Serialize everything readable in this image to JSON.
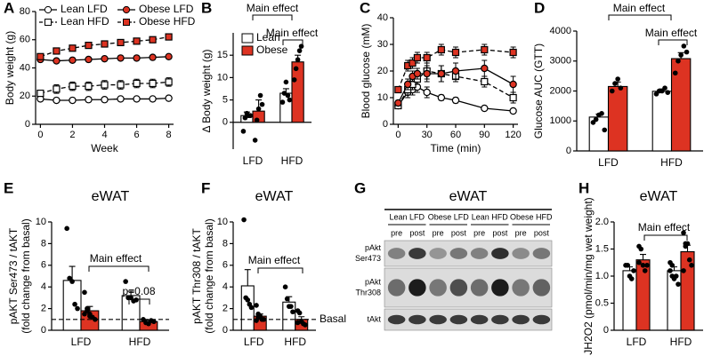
{
  "chart_data": [
    {
      "type": "line",
      "panel": "A",
      "ylabel": "Body weight (g)",
      "xlabel": "Week",
      "x": [
        0,
        1,
        2,
        3,
        4,
        5,
        6,
        7,
        8
      ],
      "xlim": [
        -0.3,
        8.3
      ],
      "xticks": [
        0,
        2,
        4,
        6,
        8
      ],
      "ylim": [
        0,
        80
      ],
      "yticks": [
        0,
        20,
        40,
        60,
        80
      ],
      "legend": true,
      "series": [
        {
          "name": "Lean LFD",
          "color": "#ffffff",
          "marker": "circle",
          "dashed": false,
          "values": [
            18,
            17,
            17,
            17.5,
            17.5,
            18,
            18,
            18,
            18.5
          ],
          "errors": [
            1,
            1,
            1,
            1,
            1,
            1,
            1,
            1,
            1
          ]
        },
        {
          "name": "Lean HFD",
          "color": "#ffffff",
          "marker": "square",
          "dashed": true,
          "values": [
            22,
            25,
            27,
            27,
            28,
            28,
            29,
            29,
            30
          ],
          "errors": [
            2,
            3,
            3,
            3,
            3,
            3,
            3,
            3,
            3
          ]
        },
        {
          "name": "Obese LFD",
          "color": "#dd3322",
          "marker": "circle",
          "dashed": false,
          "values": [
            46,
            45,
            45.5,
            46,
            46.5,
            47,
            47,
            47.5,
            48
          ],
          "errors": [
            1,
            1,
            1,
            1,
            1,
            1,
            1,
            1,
            1
          ]
        },
        {
          "name": "Obese HFD",
          "color": "#dd3322",
          "marker": "square",
          "dashed": true,
          "values": [
            48,
            52,
            54,
            56,
            57,
            58,
            59,
            60,
            62
          ],
          "errors": [
            1,
            1,
            1,
            1,
            1,
            1,
            1,
            1,
            1
          ]
        }
      ]
    },
    {
      "type": "bar",
      "panel": "B",
      "ylabel": "Δ Body weight (g)",
      "categories": [
        "LFD",
        "HFD"
      ],
      "ylim": [
        -6,
        20
      ],
      "yticks": [
        0,
        5,
        10,
        15
      ],
      "legend": true,
      "annotations": [
        "Main effect",
        "Main effect"
      ],
      "series": [
        {
          "name": "Lean",
          "color": "#ffffff",
          "values": [
            1.5,
            6.5
          ],
          "errors": [
            0.8,
            1
          ],
          "points": [
            [
              -2,
              1,
              2,
              1.5,
              1.5
            ],
            [
              4.5,
              6.5,
              9,
              6,
              5
            ]
          ]
        },
        {
          "name": "Obese",
          "color": "#dd3322",
          "values": [
            2.5,
            13.5
          ],
          "errors": [
            2.5,
            1.5
          ],
          "points": [
            [
              -4,
              0.5,
              3,
              6,
              4
            ],
            [
              9.5,
              12,
              14,
              16,
              17
            ]
          ]
        }
      ]
    },
    {
      "type": "line",
      "panel": "C",
      "ylabel": "Blood glucose (mM)",
      "xlabel": "Time (min)",
      "x": [
        0,
        10,
        15,
        20,
        30,
        45,
        60,
        90,
        120
      ],
      "xlim": [
        -5,
        125
      ],
      "xticks": [
        0,
        30,
        60,
        90,
        120
      ],
      "ylim": [
        0,
        40
      ],
      "yticks": [
        0,
        10,
        20,
        30,
        40
      ],
      "series": [
        {
          "color": "#ffffff",
          "marker": "circle",
          "dashed": false,
          "values": [
            7,
            12,
            13,
            14,
            12,
            10,
            9,
            6,
            5
          ],
          "errors": [
            1,
            2,
            2,
            2,
            2,
            1,
            1,
            0.5,
            0.5
          ]
        },
        {
          "color": "#ffffff",
          "marker": "square",
          "dashed": true,
          "values": [
            7,
            13,
            15,
            17,
            20,
            19,
            18,
            16,
            10
          ],
          "errors": [
            1,
            2,
            2,
            2,
            3,
            3,
            2,
            2,
            2
          ]
        },
        {
          "color": "#dd3322",
          "marker": "circle",
          "dashed": false,
          "values": [
            8,
            15,
            18,
            19,
            19,
            19,
            20,
            21,
            15
          ],
          "errors": [
            1,
            2,
            2,
            2,
            3,
            3,
            3,
            3,
            3
          ]
        },
        {
          "color": "#dd3322",
          "marker": "square",
          "dashed": true,
          "values": [
            13,
            22,
            23,
            25,
            25,
            28,
            27,
            28,
            27
          ],
          "errors": [
            1,
            2,
            2,
            2,
            2,
            2,
            2,
            2,
            2
          ]
        }
      ]
    },
    {
      "type": "bar",
      "panel": "D",
      "ylabel": "Glucose AUC (GTT)",
      "categories": [
        "LFD",
        "HFD"
      ],
      "ylim": [
        0,
        4000
      ],
      "yticks": [
        0,
        1000,
        2000,
        3000,
        4000
      ],
      "annotations": [
        "Main effect",
        "Main effect"
      ],
      "series": [
        {
          "color": "#ffffff",
          "values": [
            1130,
            1990
          ],
          "errors": [
            100,
            80
          ],
          "points": [
            [
              950,
              1050,
              1200,
              1250,
              700
            ],
            [
              1900,
              2000,
              2000,
              2100,
              1950
            ]
          ]
        },
        {
          "color": "#dd3322",
          "values": [
            2150,
            3080
          ],
          "errors": [
            150,
            200
          ],
          "points": [
            [
              2000,
              2250,
              2400,
              2100
            ],
            [
              2600,
              3000,
              3200,
              3500,
              3300
            ]
          ]
        }
      ]
    },
    {
      "type": "bar",
      "panel": "E",
      "title": "eWAT",
      "ylabel": [
        "pAKT Ser473 / tAKT",
        "(fold change from basal)"
      ],
      "categories": [
        "LFD",
        "HFD"
      ],
      "ylim": [
        0,
        10
      ],
      "yticks": [
        0,
        2,
        4,
        6,
        8,
        10
      ],
      "hline": 1,
      "annotations": [
        "Main effect",
        "p=0.08"
      ],
      "series": [
        {
          "color": "#ffffff",
          "values": [
            4.6,
            3.2
          ],
          "errors": [
            1.3,
            0.4
          ],
          "points": [
            [
              9.4,
              4.8,
              4.5,
              2.4,
              2.0
            ],
            [
              4.5,
              3,
              3,
              2.7,
              2.8
            ]
          ]
        },
        {
          "color": "#dd3322",
          "values": [
            1.8,
            0.8
          ],
          "errors": [
            0.4,
            0.15
          ],
          "points": [
            [
              3.5,
              2,
              1.5,
              1.2,
              1,
              1.5,
              1.8,
              1.3
            ],
            [
              1,
              0.7,
              0.6,
              0.9,
              0.8
            ]
          ]
        }
      ]
    },
    {
      "type": "bar",
      "panel": "F",
      "title": "eWAT",
      "ylabel": [
        "pAKT Thr308 / tAKT",
        "(fold change from basal)"
      ],
      "categories": [
        "LFD",
        "HFD"
      ],
      "ylim": [
        0,
        10
      ],
      "yticks": [
        0,
        2,
        4,
        6,
        8,
        10
      ],
      "hline": 1,
      "hline_label": "Basal",
      "annotations": [
        "Main effect"
      ],
      "series": [
        {
          "color": "#ffffff",
          "values": [
            4.1,
            2.6
          ],
          "errors": [
            1.5,
            0.5
          ],
          "points": [
            [
              10.2,
              3,
              2.8,
              2.4,
              2.1
            ],
            [
              4,
              2.9,
              2.2,
              2.2,
              1.7
            ]
          ]
        },
        {
          "color": "#dd3322",
          "values": [
            1.3,
            1.0
          ],
          "errors": [
            0.2,
            0.25
          ],
          "points": [
            [
              2.3,
              1.5,
              1.2,
              1,
              1,
              0.9,
              1.2,
              1.3
            ],
            [
              1.8,
              1.6,
              0.8,
              0.6,
              0.5,
              0.7
            ]
          ]
        }
      ]
    },
    {
      "type": "bar",
      "panel": "H",
      "title": "eWAT",
      "ylabel": "JH2O2 (pmol/min/mg wet weight)",
      "categories": [
        "LFD",
        "HFD"
      ],
      "ylim": [
        0,
        2
      ],
      "yticks": [
        0,
        0.5,
        {
          "value": 1,
          "label": "1.0"
        },
        1.5,
        {
          "value": 2,
          "label": "2.0"
        }
      ],
      "annotations": [
        "Main effect"
      ],
      "series": [
        {
          "color": "#ffffff",
          "values": [
            1.1,
            1.1
          ],
          "errors": [
            0.07,
            0.07
          ],
          "points": [
            [
              1.2,
              1.2,
              1.0,
              0.95,
              1.1
            ],
            [
              1.25,
              1.2,
              0.95,
              1.0,
              0.85,
              1.1,
              1.0
            ]
          ]
        },
        {
          "color": "#dd3322",
          "values": [
            1.3,
            1.45
          ],
          "errors": [
            0.1,
            0.12
          ],
          "points": [
            [
              1.55,
              1.5,
              1.2,
              1.1,
              1.2,
              1.25
            ],
            [
              1.8,
              1.6,
              1.6,
              1.3,
              1.2,
              1.1,
              1.55
            ]
          ]
        }
      ]
    }
  ],
  "blot": {
    "panel": "G",
    "title": "eWAT",
    "groups": [
      "Lean LFD",
      "Obese LFD",
      "Lean HFD",
      "Obese HFD"
    ],
    "lanes": [
      "pre",
      "post",
      "pre",
      "post",
      "pre",
      "post",
      "pre",
      "post"
    ],
    "rows": [
      [
        "pAkt",
        "Ser473"
      ],
      [
        "pAkt",
        "Thr308"
      ],
      [
        "tAkt"
      ]
    ]
  }
}
